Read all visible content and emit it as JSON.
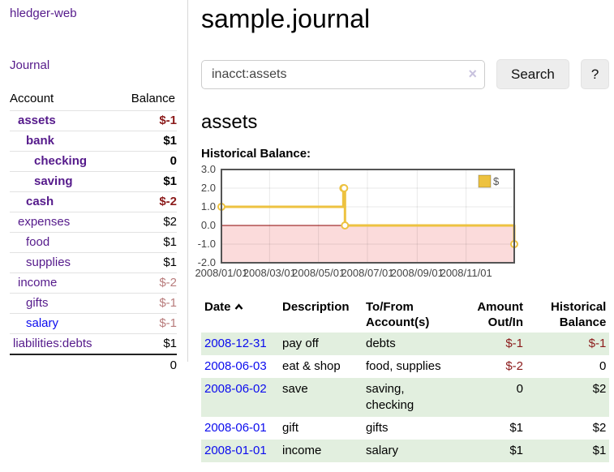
{
  "brand": "hledger-web",
  "nav": {
    "journal": "Journal"
  },
  "sidebar": {
    "header": {
      "account": "Account",
      "balance": "Balance"
    },
    "rows": [
      {
        "label": "assets",
        "balance": "$-1"
      },
      {
        "label": "bank",
        "balance": "$1"
      },
      {
        "label": "checking",
        "balance": "0"
      },
      {
        "label": "saving",
        "balance": "$1"
      },
      {
        "label": "cash",
        "balance": "$-2"
      },
      {
        "label": "expenses",
        "balance": "$2"
      },
      {
        "label": "food",
        "balance": "$1"
      },
      {
        "label": "supplies",
        "balance": "$1"
      },
      {
        "label": "income",
        "balance": "$-2"
      },
      {
        "label": "gifts",
        "balance": "$-1"
      },
      {
        "label": "salary",
        "balance": "$-1"
      },
      {
        "label": "liabilities:debts",
        "balance": "$1"
      }
    ],
    "total": "0"
  },
  "page": {
    "title": "sample.journal",
    "account_heading": "assets",
    "chart_label": "Historical Balance:"
  },
  "search": {
    "value": "inacct:assets",
    "clear_icon": "×",
    "button": "Search",
    "help_button": "?"
  },
  "chart_data": {
    "type": "line",
    "step": true,
    "title": "Historical Balance",
    "series": [
      {
        "name": "$",
        "color": "#edc240",
        "points": [
          [
            "2008-01-01",
            1
          ],
          [
            "2008-06-01",
            2
          ],
          [
            "2008-06-02",
            2
          ],
          [
            "2008-06-03",
            0
          ],
          [
            "2008-12-31",
            -1
          ]
        ]
      }
    ],
    "x_ticks": [
      "2008/01/01",
      "2008/03/01",
      "2008/05/01",
      "2008/07/01",
      "2008/09/01",
      "2008/11/01"
    ],
    "y_ticks": [
      3.0,
      2.0,
      1.0,
      0.0,
      -1.0,
      -2.0
    ],
    "xlim": [
      "2008-01-01",
      "2008-12-31"
    ],
    "ylim": [
      -2,
      3
    ],
    "grid": true,
    "legend": {
      "label": "$",
      "position": "top-right"
    },
    "negative_zone_color": "#fbdbdb",
    "zero_line_color": "#8b0000"
  },
  "register": {
    "headers": {
      "date": "Date",
      "description": "Description",
      "account": "To/From Account(s)",
      "amount": "Amount Out/In",
      "balance": "Historical Balance"
    },
    "rows": [
      {
        "date": "2008-12-31",
        "description": "pay off",
        "account": "debts",
        "amount": "$-1",
        "balance": "$-1"
      },
      {
        "date": "2008-06-03",
        "description": "eat & shop",
        "account": "food, supplies",
        "amount": "$-2",
        "balance": "0"
      },
      {
        "date": "2008-06-02",
        "description": "save",
        "account": "saving,",
        "account2": "checking",
        "amount": "0",
        "balance": "$2"
      },
      {
        "date": "2008-06-01",
        "description": "gift",
        "account": "gifts",
        "amount": "$1",
        "balance": "$2"
      },
      {
        "date": "2008-01-01",
        "description": "income",
        "account": "salary",
        "amount": "$1",
        "balance": "$1"
      }
    ]
  },
  "colors": {
    "link_purple": "#551a8b",
    "link_blue": "#0b0bee",
    "negative_strong": "#8b1a1a",
    "negative_muted": "#b87c7c",
    "row_stripe_green": "#e2efdf",
    "chart_line_gold": "#edc240",
    "chart_negative_zone": "#fbdbdb",
    "chart_zero_line": "#8b0000"
  }
}
